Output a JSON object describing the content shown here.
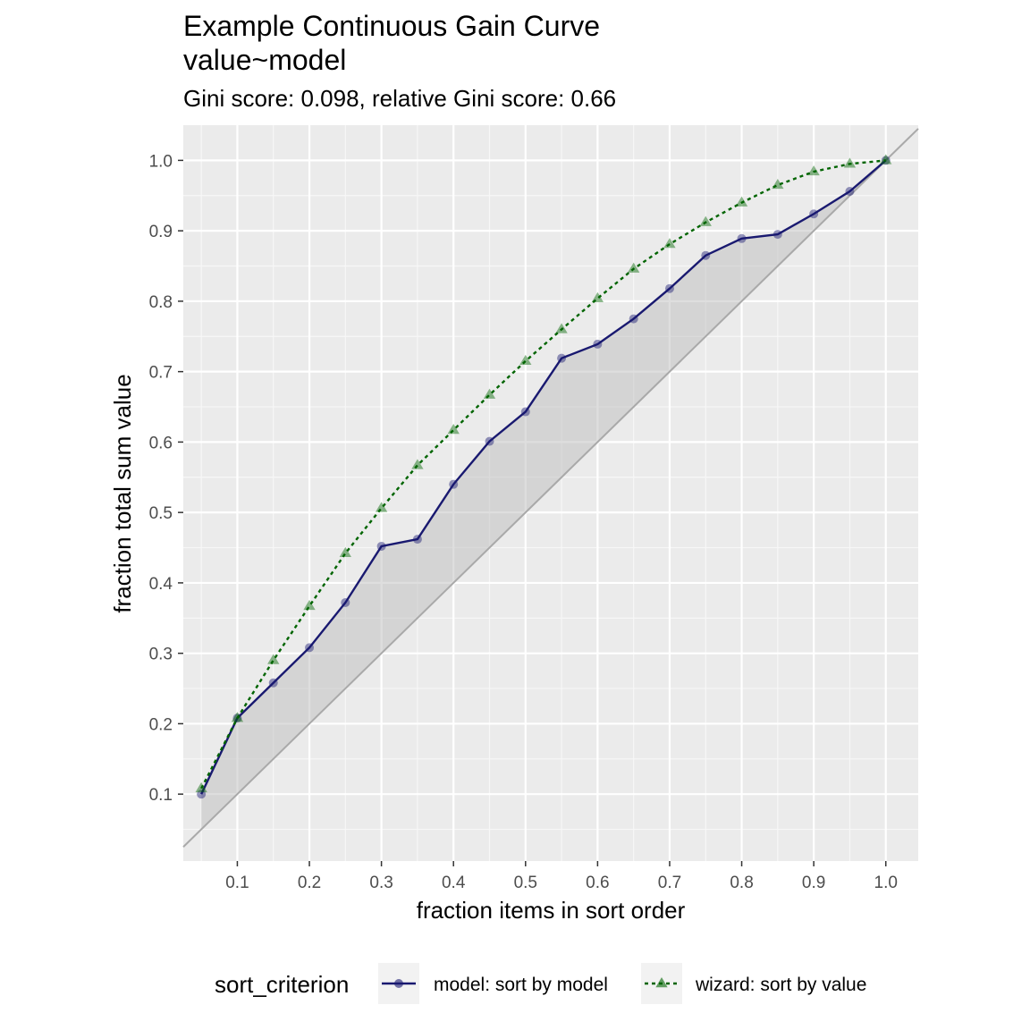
{
  "chart_data": {
    "type": "line",
    "title_lines": [
      "Example Continuous Gain Curve",
      "value~model"
    ],
    "subtitle": "Gini score: 0.098, relative Gini score: 0.66",
    "xlabel": "fraction items in sort order",
    "ylabel": "fraction total sum value",
    "xlim": [
      0.025,
      1.045
    ],
    "ylim": [
      0.005,
      1.05
    ],
    "x_ticks": [
      "0.1",
      "0.2",
      "0.3",
      "0.4",
      "0.5",
      "0.6",
      "0.7",
      "0.8",
      "0.9",
      "1.0"
    ],
    "y_ticks": [
      "0.1",
      "0.2",
      "0.3",
      "0.4",
      "0.5",
      "0.6",
      "0.7",
      "0.8",
      "0.9",
      "1.0"
    ],
    "grid": true,
    "diagonal_reference": true,
    "shaded_region": "between model curve and diagonal",
    "x": [
      0.05,
      0.1,
      0.15,
      0.2,
      0.25,
      0.3,
      0.35,
      0.4,
      0.45,
      0.5,
      0.55,
      0.6,
      0.65,
      0.7,
      0.75,
      0.8,
      0.85,
      0.9,
      0.95,
      1.0
    ],
    "series": [
      {
        "name": "model: sort by model",
        "color": "#191970",
        "line": "solid",
        "marker": "circle",
        "values": [
          0.1,
          0.208,
          0.258,
          0.308,
          0.372,
          0.452,
          0.462,
          0.54,
          0.601,
          0.643,
          0.719,
          0.739,
          0.775,
          0.818,
          0.865,
          0.889,
          0.895,
          0.924,
          0.956,
          1.0
        ]
      },
      {
        "name": "wizard: sort by value",
        "color": "#006400",
        "line": "dotted",
        "marker": "triangle",
        "values": [
          0.108,
          0.208,
          0.29,
          0.367,
          0.442,
          0.506,
          0.567,
          0.617,
          0.667,
          0.715,
          0.76,
          0.804,
          0.846,
          0.881,
          0.912,
          0.94,
          0.965,
          0.984,
          0.995,
          1.0
        ]
      }
    ],
    "legend": {
      "title": "sort_criterion",
      "position": "bottom"
    }
  }
}
